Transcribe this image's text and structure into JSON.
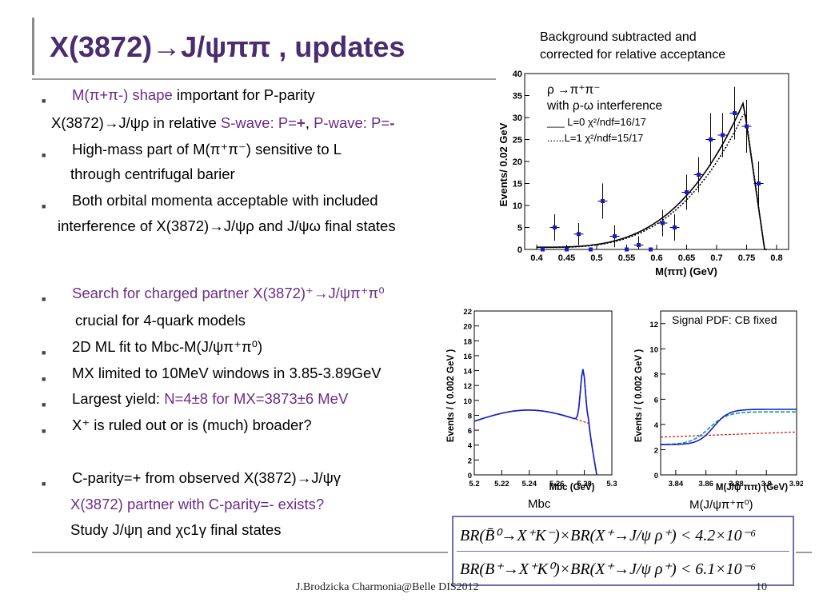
{
  "title": "X(3872)→J/ψππ , updates",
  "top_note": [
    "Background subtracted and",
    "corrected for relative acceptance"
  ],
  "bullets": {
    "b1": {
      "purple": "M(π+π-) shape",
      "rest": " important for P-parity"
    },
    "b1_line2": {
      "pre": "X(3872)→J/ψρ in relative ",
      "s": "S-wave: P=",
      "s_sign": "+",
      "sep": ",  ",
      "p": "P-wave: P=",
      "p_sign": "-"
    },
    "b2": "High-mass part of  M(π⁺π⁻) sensitive to L",
    "b2_line2": "through centrifugal barier",
    "b3": "Both orbital momenta acceptable with included",
    "b3_line2": "interference of X(3872)→J/ψρ and J/ψω final states",
    "b4": "Search for charged partner X(3872)⁺→J/ψπ⁺π⁰",
    "b4_line2": "crucial for 4-quark models",
    "b5": "2D ML fit to Mbc-M(J/ψπ⁺π⁰)",
    "b6": "MX limited to 10MeV windows in 3.85-3.89GeV",
    "b7": {
      "pre": "Largest yield: ",
      "purple": "N=4±8 for MX=3873±6 MeV"
    },
    "b8": "X⁺ is ruled out or is (much) broader?",
    "b9": "C-parity=+ from observed X(3872)→J/ψγ",
    "b9_line2": "X(3872) partner with C-parity=- exists?",
    "b9_line3": "Study J/ψη and χc1γ final states"
  },
  "plot_top_legend": {
    "l1": "ρ →π⁺π⁻",
    "l2": "with ρ-ω interference",
    "l3": "___ L=0 χ²/ndf=16/17",
    "l4": "......L=1 χ²/ndf=15/17"
  },
  "plot_labels": {
    "mbc": "Mbc",
    "mjpsi": "M(J/ψπ⁺π⁰)",
    "signal_pdf": "Signal PDF: CB fixed"
  },
  "formulas": {
    "f1": "BR(B̄⁰→X⁺K⁻)×BR(X⁺→J/ψ ρ⁺) < 4.2×10⁻⁶",
    "f2": "BR(B⁺→X⁺K⁰)×BR(X⁺→J/ψ ρ⁺) < 6.1×10⁻⁶"
  },
  "footer": {
    "center": "J.Brodzicka  Charmonia@Belle   DIS2012",
    "page": "10"
  },
  "colors": {
    "title": "#4b2c6f",
    "accent_purple": "#6b2d86",
    "fit_blue": "#1a1ad0",
    "fit_green": "#0aa08a",
    "fit_red": "#d01010"
  },
  "chart_data": [
    {
      "type": "scatter",
      "xlabel": "M(ππ) (GeV)",
      "ylabel": "Events/ 0.02 GeV",
      "xlim": [
        0.38,
        0.82
      ],
      "ylim": [
        0,
        40
      ],
      "xticks": [
        "0.4",
        "0.45",
        "0.5",
        "0.55",
        "0.6",
        "0.65",
        "0.7",
        "0.75",
        "0.8"
      ],
      "yticks": [
        "0",
        "5",
        "10",
        "15",
        "20",
        "25",
        "30",
        "35",
        "40"
      ],
      "x": [
        0.41,
        0.43,
        0.45,
        0.47,
        0.49,
        0.51,
        0.53,
        0.55,
        0.57,
        0.59,
        0.61,
        0.63,
        0.65,
        0.67,
        0.69,
        0.71,
        0.73,
        0.75,
        0.77
      ],
      "y": [
        0,
        5,
        0,
        3.5,
        0,
        11,
        3,
        0,
        1,
        0,
        6,
        5,
        13,
        17,
        25,
        26,
        31,
        28,
        15
      ],
      "yerr": [
        0,
        3,
        0,
        2.5,
        0,
        4,
        2.5,
        0,
        2,
        0,
        3,
        3,
        4,
        4,
        6,
        5,
        6,
        6,
        5
      ]
    },
    {
      "type": "scatter",
      "xlabel": "Mbc (GeV)",
      "ylabel": "Events / ( 0.002 GeV )",
      "xlim": [
        5.2,
        5.3
      ],
      "ylim": [
        0,
        22
      ],
      "xticks": [
        "5.2",
        "5.22",
        "5.24",
        "5.26",
        "5.28",
        "5.3"
      ],
      "yticks": [
        "0",
        "2",
        "4",
        "6",
        "8",
        "10",
        "12",
        "14",
        "16",
        "18",
        "20",
        "22"
      ]
    },
    {
      "type": "scatter",
      "xlabel": "M(J/ψ ππ) (GeV)",
      "ylabel": "Events / ( 0.002 GeV )",
      "xlim": [
        3.83,
        3.92
      ],
      "ylim": [
        0,
        13
      ],
      "xticks": [
        "3.84",
        "3.86",
        "3.88",
        "3.9",
        "3.92"
      ],
      "yticks": [
        "0",
        "2",
        "4",
        "6",
        "8",
        "10",
        "12"
      ]
    }
  ]
}
